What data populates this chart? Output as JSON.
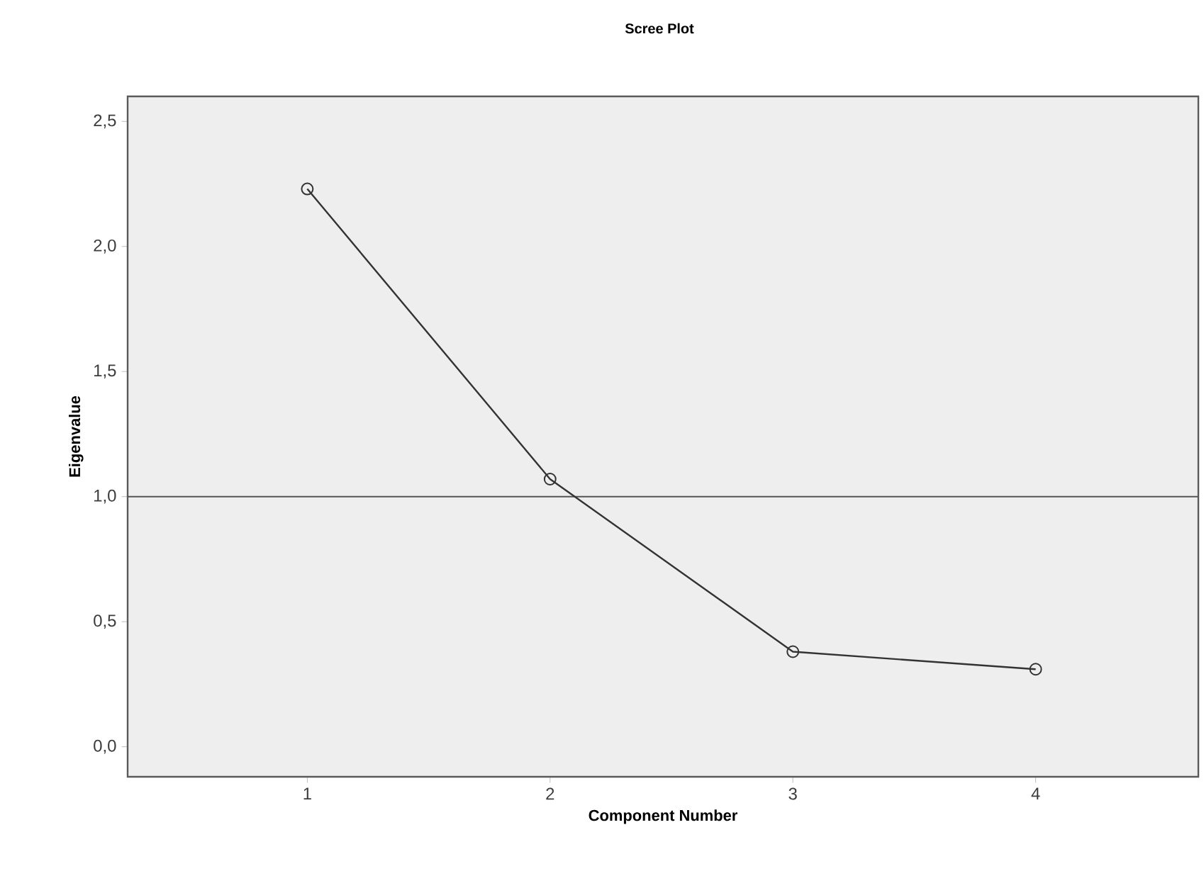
{
  "chart_data": {
    "type": "line",
    "title": "Scree Plot",
    "xlabel": "Component Number",
    "ylabel": "Eigenvalue",
    "x": [
      1,
      2,
      3,
      4
    ],
    "series": [
      {
        "color": "#333333",
        "values": [
          2.23,
          1.07,
          0.38,
          0.31
        ]
      }
    ],
    "xlim": [
      0.26,
      4.67
    ],
    "xticks": [
      1,
      2,
      3,
      4
    ],
    "ylim": [
      -0.12,
      2.6
    ],
    "yticks": [
      {
        "value": 0,
        "label": "0,0"
      },
      {
        "value": 0.5,
        "label": "0,5"
      },
      {
        "value": 1,
        "label": "1,0"
      },
      {
        "value": 1.5,
        "label": "1,5"
      },
      {
        "value": 2,
        "label": "2,0"
      },
      {
        "value": 2.5,
        "label": "2,5"
      }
    ],
    "ref_lines": [
      {
        "axis": "y",
        "value": 1,
        "color": "#555555"
      }
    ],
    "marker": "circle",
    "line_style": "solid"
  }
}
